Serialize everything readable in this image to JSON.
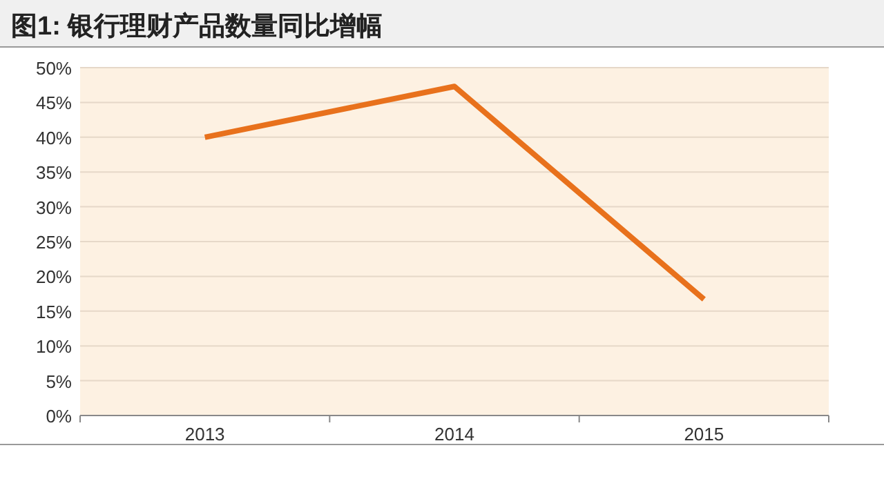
{
  "chart_data": {
    "type": "line",
    "title": "图1: 银行理财产品数量同比增幅",
    "categories": [
      "2013",
      "2014",
      "2015"
    ],
    "series": [
      {
        "color": "#e8711c",
        "values": [
          40,
          47.3,
          16.7
        ]
      }
    ],
    "ylim": [
      0,
      50
    ],
    "yticks": [
      {
        "value": 0,
        "label": "0%"
      },
      {
        "value": 5,
        "label": "5%"
      },
      {
        "value": 10,
        "label": "10%"
      },
      {
        "value": 15,
        "label": "15%"
      },
      {
        "value": 20,
        "label": "20%"
      },
      {
        "value": 25,
        "label": "25%"
      },
      {
        "value": 30,
        "label": "30%"
      },
      {
        "value": 35,
        "label": "35%"
      },
      {
        "value": 40,
        "label": "40%"
      },
      {
        "value": 45,
        "label": "45%"
      },
      {
        "value": 50,
        "label": "50%"
      }
    ],
    "grid": "y",
    "line_style": "solid",
    "marker": "none"
  }
}
